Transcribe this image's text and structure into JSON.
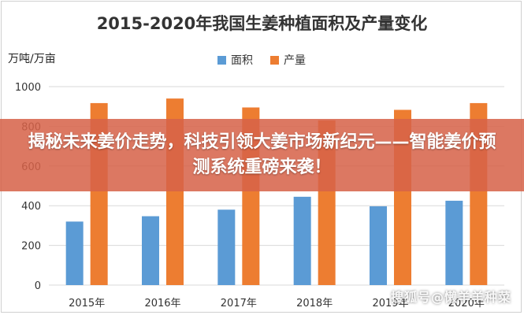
{
  "chart_data": {
    "type": "bar",
    "title": "2015-2020年我国生姜种植面积及产量变化",
    "ylabel": "万吨/万亩",
    "categories": [
      "2015年",
      "2016年",
      "2017年",
      "2018年",
      "2019年",
      "2020年"
    ],
    "series": [
      {
        "name": "面积",
        "color": "#5b9bd5",
        "values": [
          320,
          347,
          380,
          445,
          397,
          425
        ]
      },
      {
        "name": "产量",
        "color": "#ed7d31",
        "values": [
          917,
          940,
          895,
          830,
          883,
          917
        ]
      }
    ],
    "ylim": [
      0,
      1000
    ],
    "yticks": [
      0,
      200,
      400,
      600,
      800,
      1000
    ],
    "grid": true,
    "legend": "top"
  },
  "overlay": {
    "banner_text": "揭秘未来姜价走势，科技引领大姜市场新纪元——智能姜价预测系统重磅来袭！",
    "watermark": "搜狐号@懒羊羊种菜"
  }
}
